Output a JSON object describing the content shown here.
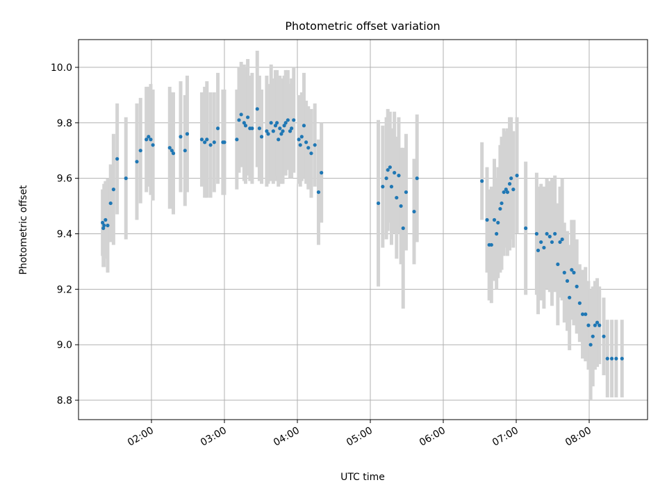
{
  "chart_data": {
    "type": "scatter",
    "title": "Photometric offset variation",
    "xlabel": "UTC time",
    "ylabel": "Photometric offset",
    "x_unit": "UTC time (decimal hours)",
    "xlim": [
      1.0,
      8.8
    ],
    "ylim": [
      8.73,
      10.1
    ],
    "grid": true,
    "x_ticks": [
      {
        "value": 2,
        "label": "02:00"
      },
      {
        "value": 3,
        "label": "03:00"
      },
      {
        "value": 4,
        "label": "04:00"
      },
      {
        "value": 5,
        "label": "05:00"
      },
      {
        "value": 6,
        "label": "06:00"
      },
      {
        "value": 7,
        "label": "07:00"
      },
      {
        "value": 8,
        "label": "08:00"
      }
    ],
    "y_ticks": [
      {
        "value": 8.8,
        "label": "8.8"
      },
      {
        "value": 9.0,
        "label": "9.0"
      },
      {
        "value": 9.2,
        "label": "9.2"
      },
      {
        "value": 9.4,
        "label": "9.4"
      },
      {
        "value": 9.6,
        "label": "9.6"
      },
      {
        "value": 9.8,
        "label": "9.8"
      },
      {
        "value": 10.0,
        "label": "10.0"
      }
    ],
    "colors": {
      "point": "#1f77b4",
      "errorbar": "#d3d3d3",
      "grid": "#b0b0b0"
    },
    "series": [
      {
        "x": [
          1.33,
          1.34,
          1.35,
          1.37,
          1.4,
          1.44,
          1.48,
          1.53,
          1.65,
          1.8,
          1.85,
          1.93,
          1.96,
          1.99,
          2.02,
          2.25,
          2.28,
          2.3,
          2.4,
          2.46,
          2.49,
          2.69,
          2.73,
          2.76,
          2.81,
          2.86,
          2.91,
          2.98,
          3.0,
          3.17,
          3.2,
          3.23,
          3.27,
          3.29,
          3.32,
          3.35,
          3.38,
          3.45,
          3.48,
          3.51,
          3.58,
          3.6,
          3.64,
          3.67,
          3.7,
          3.72,
          3.74,
          3.76,
          3.78,
          3.8,
          3.82,
          3.84,
          3.87,
          3.9,
          3.92,
          3.95,
          4.02,
          4.04,
          4.06,
          4.09,
          4.12,
          4.15,
          4.19,
          4.24,
          4.29,
          4.33,
          5.11,
          5.17,
          5.22,
          5.24,
          5.27,
          5.29,
          5.33,
          5.36,
          5.39,
          5.42,
          5.45,
          5.49,
          5.6,
          5.64,
          6.53,
          6.6,
          6.63,
          6.66,
          6.7,
          6.73,
          6.75,
          6.78,
          6.8,
          6.83,
          6.86,
          6.88,
          6.91,
          6.93,
          6.96,
          7.01,
          7.13,
          7.28,
          7.3,
          7.34,
          7.38,
          7.42,
          7.46,
          7.49,
          7.53,
          7.57,
          7.6,
          7.63,
          7.66,
          7.7,
          7.73,
          7.76,
          7.79,
          7.83,
          7.87,
          7.91,
          7.95,
          7.99,
          8.02,
          8.05,
          8.08,
          8.11,
          8.14,
          8.2,
          8.25,
          8.31,
          8.37,
          8.45
        ],
        "y": [
          9.44,
          9.42,
          9.43,
          9.45,
          9.43,
          9.51,
          9.56,
          9.67,
          9.6,
          9.66,
          9.7,
          9.74,
          9.75,
          9.74,
          9.72,
          9.71,
          9.7,
          9.69,
          9.75,
          9.7,
          9.76,
          9.74,
          9.73,
          9.74,
          9.72,
          9.73,
          9.78,
          9.73,
          9.73,
          9.74,
          9.81,
          9.83,
          9.8,
          9.79,
          9.82,
          9.78,
          9.78,
          9.85,
          9.78,
          9.75,
          9.77,
          9.76,
          9.8,
          9.77,
          9.79,
          9.8,
          9.74,
          9.78,
          9.76,
          9.77,
          9.79,
          9.8,
          9.81,
          9.77,
          9.78,
          9.81,
          9.74,
          9.72,
          9.75,
          9.79,
          9.73,
          9.71,
          9.69,
          9.72,
          9.55,
          9.62,
          9.51,
          9.57,
          9.6,
          9.63,
          9.64,
          9.57,
          9.62,
          9.53,
          9.61,
          9.5,
          9.42,
          9.55,
          9.48,
          9.6,
          9.59,
          9.45,
          9.36,
          9.36,
          9.45,
          9.4,
          9.44,
          9.49,
          9.51,
          9.55,
          9.56,
          9.55,
          9.58,
          9.6,
          9.56,
          9.61,
          9.42,
          9.4,
          9.34,
          9.37,
          9.35,
          9.4,
          9.39,
          9.37,
          9.4,
          9.29,
          9.37,
          9.38,
          9.26,
          9.23,
          9.17,
          9.27,
          9.26,
          9.21,
          9.15,
          9.11,
          9.11,
          9.07,
          9.0,
          9.03,
          9.07,
          9.08,
          9.07,
          9.03,
          8.95,
          8.95,
          8.95,
          8.95
        ],
        "err": [
          0.12,
          0.14,
          0.15,
          0.14,
          0.17,
          0.14,
          0.2,
          0.2,
          0.22,
          0.21,
          0.19,
          0.19,
          0.18,
          0.2,
          0.2,
          0.22,
          0.21,
          0.22,
          0.2,
          0.2,
          0.21,
          0.17,
          0.2,
          0.21,
          0.19,
          0.18,
          0.2,
          0.19,
          0.19,
          0.18,
          0.19,
          0.19,
          0.21,
          0.21,
          0.21,
          0.19,
          0.2,
          0.21,
          0.19,
          0.17,
          0.2,
          0.18,
          0.21,
          0.19,
          0.2,
          0.19,
          0.17,
          0.19,
          0.18,
          0.19,
          0.18,
          0.19,
          0.18,
          0.17,
          0.18,
          0.19,
          0.16,
          0.15,
          0.16,
          0.19,
          0.15,
          0.15,
          0.16,
          0.15,
          0.19,
          0.18,
          0.3,
          0.22,
          0.22,
          0.22,
          0.2,
          0.21,
          0.22,
          0.22,
          0.21,
          0.21,
          0.29,
          0.21,
          0.19,
          0.23,
          0.14,
          0.19,
          0.2,
          0.21,
          0.22,
          0.2,
          0.2,
          0.23,
          0.24,
          0.23,
          0.21,
          0.23,
          0.24,
          0.22,
          0.21,
          0.21,
          0.24,
          0.22,
          0.23,
          0.21,
          0.22,
          0.2,
          0.2,
          0.23,
          0.21,
          0.22,
          0.2,
          0.22,
          0.18,
          0.18,
          0.19,
          0.18,
          0.19,
          0.17,
          0.14,
          0.16,
          0.17,
          0.16,
          0.2,
          0.18,
          0.16,
          0.16,
          0.14,
          0.14,
          0.14,
          0.14,
          0.14,
          0.14
        ]
      }
    ]
  }
}
